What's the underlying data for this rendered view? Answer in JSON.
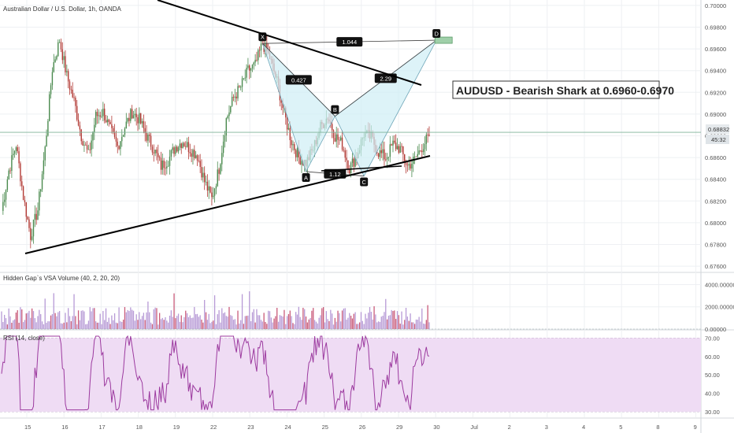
{
  "header": {
    "symbol_title": "Australian Dollar / U.S. Dollar, 1h, OANDA"
  },
  "annotation": {
    "headline": "AUDUSD - Bearish Shark at 0.6960-0.6970"
  },
  "colors": {
    "up_candle": "#4a8a4e",
    "down_candle": "#b23a35",
    "pattern_fill": "#cfeef5",
    "pattern_stroke": "#000000",
    "rsi_line": "#9c3a9f",
    "rsi_band": "#efdcf4",
    "volume_bar": "#b79ad6",
    "volume_bar_red": "#c95b7a",
    "grid": "#eef0f3",
    "last_price_bg": "#e5e9ec",
    "target_box": "#9fcfa9"
  },
  "chart_data": [
    {
      "type": "candlestick",
      "name_shown": "Australian Dollar / U.S. Dollar, 1h, OANDA",
      "y_ticks": [
        "0.70000",
        "0.69800",
        "0.69600",
        "0.69400",
        "0.69200",
        "0.69000",
        "0.68800",
        "0.68600",
        "0.68400",
        "0.68200",
        "0.68000",
        "0.67800",
        "0.67600"
      ],
      "ylim": [
        0.6755,
        0.7005
      ],
      "x_ticks": [
        "15",
        "16",
        "17",
        "18",
        "19",
        "22",
        "23",
        "24",
        "25",
        "26",
        "29",
        "30",
        "Jul",
        "2",
        "3",
        "4",
        "5",
        "8",
        "9"
      ],
      "last_price": "0.68832",
      "countdown": "45:32",
      "price_path": [
        0.6811,
        0.6848,
        0.6872,
        0.6824,
        0.6788,
        0.6812,
        0.6868,
        0.6942,
        0.6968,
        0.6935,
        0.6912,
        0.688,
        0.6862,
        0.6898,
        0.6902,
        0.6885,
        0.687,
        0.6888,
        0.6902,
        0.6895,
        0.688,
        0.6868,
        0.6852,
        0.6858,
        0.687,
        0.6875,
        0.6868,
        0.6862,
        0.6838,
        0.6822,
        0.685,
        0.6895,
        0.6915,
        0.6925,
        0.694,
        0.6945,
        0.6965,
        0.6952,
        0.693,
        0.69,
        0.6875,
        0.686,
        0.6855,
        0.6868,
        0.6888,
        0.6898,
        0.688,
        0.6872,
        0.685,
        0.6862,
        0.6882,
        0.6878,
        0.6865,
        0.686,
        0.6872,
        0.6868,
        0.6852,
        0.6858,
        0.687,
        0.688
      ],
      "pattern": {
        "points": [
          {
            "label": "X",
            "x_index": 36,
            "price": 0.6965
          },
          {
            "label": "A",
            "x_index": 42,
            "price": 0.6847
          },
          {
            "label": "B",
            "x_index": 46,
            "price": 0.6898
          },
          {
            "label": "C",
            "x_index": 50,
            "price": 0.6843
          },
          {
            "label": "D",
            "x_index": 60,
            "price": 0.6968
          }
        ],
        "ratios": [
          "0.427",
          "1.12",
          "2.29",
          "1.044"
        ]
      },
      "trendlines": [
        "upper-descending",
        "lower-ascending"
      ]
    },
    {
      "type": "bar",
      "title": "Hidden Gap`s VSA Volume (40, 2, 20, 20)",
      "y_ticks": [
        "4000.00000",
        "2000.00000",
        "0.00000"
      ],
      "ylim": [
        0,
        4600
      ]
    },
    {
      "type": "line",
      "title": "RSI (14, close)",
      "y_ticks": [
        "70.00",
        "60.00",
        "50.00",
        "40.00",
        "30.00"
      ],
      "ylim": [
        27,
        74
      ],
      "band": [
        30,
        70
      ]
    }
  ]
}
